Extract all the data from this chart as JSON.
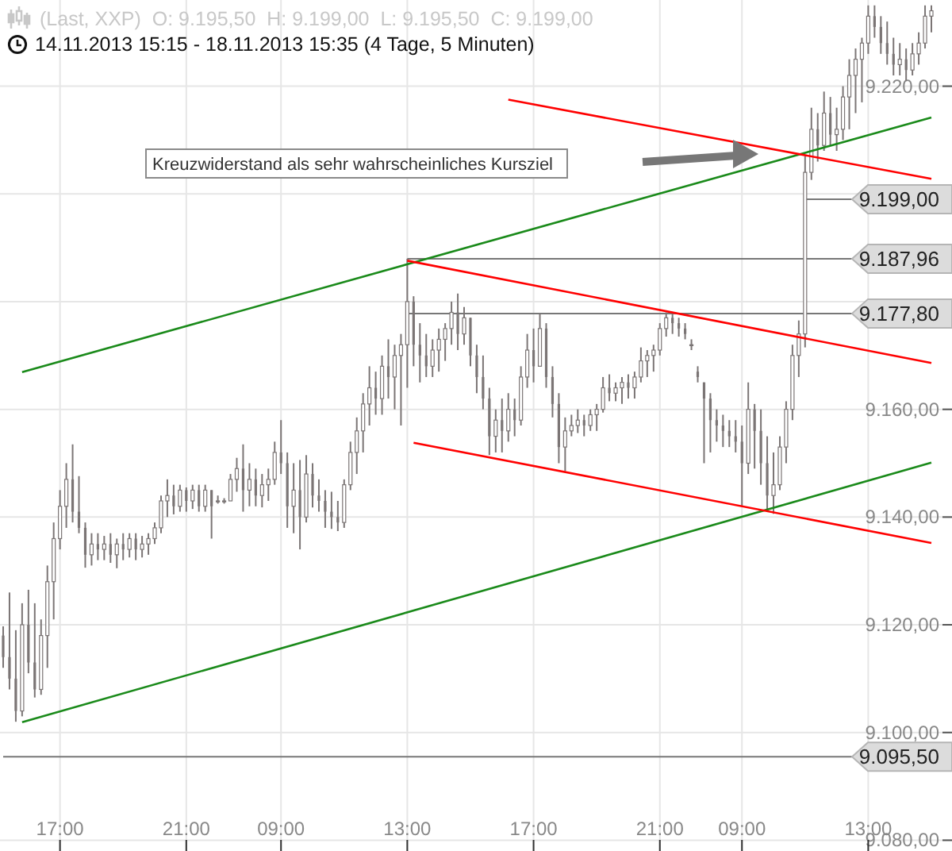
{
  "chart_data": {
    "type": "candlestick",
    "title": "(Last, XXP)  O: 9.195,50  H: 9.199,00  L: 9.195,50  C: 9.199,00",
    "subtitle": "14.11.2013 15:15 - 18.11.2013 15:35 (4 Tage, 5 Minuten)",
    "categories": [
      null,
      null,
      null,
      null,
      null,
      null,
      null,
      null,
      null,
      "17:00",
      null,
      null,
      null,
      null,
      null,
      null,
      null,
      null,
      null,
      null,
      null,
      null,
      null,
      null,
      null,
      null,
      null,
      null,
      null,
      "21:00",
      null,
      null,
      null,
      null,
      null,
      null,
      null,
      null,
      null,
      null,
      null,
      null,
      null,
      null,
      "09:00",
      null,
      null,
      null,
      null,
      null,
      null,
      null,
      null,
      null,
      null,
      null,
      null,
      null,
      null,
      null,
      null,
      null,
      null,
      null,
      "13:00",
      null,
      null,
      null,
      null,
      null,
      null,
      null,
      null,
      null,
      null,
      null,
      null,
      null,
      null,
      null,
      null,
      null,
      null,
      null,
      "17:00",
      null,
      null,
      null,
      null,
      null,
      null,
      null,
      null,
      null,
      null,
      null,
      null,
      null,
      null,
      null,
      null,
      null,
      null,
      null,
      "21:00",
      null,
      null,
      null,
      null,
      null,
      null,
      null,
      null,
      null,
      null,
      null,
      null,
      "09:00",
      null,
      null,
      null,
      null,
      null,
      null,
      null,
      null,
      null,
      null,
      null,
      null,
      null,
      null,
      null,
      null,
      null,
      null,
      null,
      "13:00",
      null,
      null,
      null,
      null,
      null,
      null,
      null,
      null,
      null,
      null
    ],
    "ylim": [
      9078,
      9236
    ],
    "yticks": [
      {
        "value": 9080,
        "label": "9.080,00"
      },
      {
        "value": 9100,
        "label": "9.100,00"
      },
      {
        "value": 9120,
        "label": "9.120,00"
      },
      {
        "value": 9140,
        "label": "9.140,00"
      },
      {
        "value": 9160,
        "label": "9.160,00"
      },
      {
        "value": 9180,
        "label": null
      },
      {
        "value": 9200,
        "label": null
      },
      {
        "value": 9220,
        "label": "9.220,00"
      }
    ],
    "grid": true,
    "series": [
      {
        "color": "#7b7575",
        "ohlc": [
          [
            9118,
            9119.7,
            9112,
            9114
          ],
          [
            9114,
            9126,
            9108,
            9110
          ],
          [
            9110,
            9119,
            9102,
            9104
          ],
          [
            9104,
            9124,
            9103,
            9120
          ],
          [
            9120,
            9126.5,
            9111,
            9113
          ],
          [
            9113,
            9124,
            9106.5,
            9108
          ],
          [
            9108,
            9121,
            9107,
            9118
          ],
          [
            9118,
            9131,
            9112,
            9128
          ],
          [
            9128,
            9139,
            9121,
            9136
          ],
          [
            9136,
            9145,
            9134,
            9142
          ],
          [
            9142,
            9150,
            9138,
            9147
          ],
          [
            9147,
            9153.5,
            9139,
            9141
          ],
          [
            9141,
            9147.6,
            9137,
            9138
          ],
          [
            9138,
            9139,
            9130.6,
            9133
          ],
          [
            9133,
            9137,
            9131,
            9135
          ],
          [
            9135,
            9137,
            9132,
            9134
          ],
          [
            9134,
            9136.5,
            9132,
            9135
          ],
          [
            9135,
            9137,
            9131.5,
            9133
          ],
          [
            9133,
            9136,
            9130.5,
            9135
          ],
          [
            9135,
            9137,
            9132,
            9134
          ],
          [
            9134,
            9137,
            9132.5,
            9136
          ],
          [
            9136,
            9137,
            9132,
            9134
          ],
          [
            9134,
            9136.5,
            9132.5,
            9135
          ],
          [
            9135,
            9137,
            9133,
            9136
          ],
          [
            9136,
            9139,
            9135,
            9138
          ],
          [
            9138,
            9144,
            9137,
            9143
          ],
          [
            9143,
            9147,
            9140,
            9144
          ],
          [
            9144,
            9146,
            9140.5,
            9142
          ],
          [
            9142,
            9146,
            9141,
            9145
          ],
          [
            9145,
            9145.5,
            9141,
            9143
          ],
          [
            9143,
            9146,
            9141.5,
            9145
          ],
          [
            9145,
            9146,
            9141,
            9142
          ],
          [
            9142,
            9146,
            9141,
            9145
          ],
          [
            9145,
            9145,
            9136,
            9142
          ],
          [
            9143,
            9144,
            9142.5,
            9143
          ],
          [
            9143,
            9143.5,
            9142.5,
            9143
          ],
          [
            9143,
            9148,
            9143,
            9147
          ],
          [
            9147,
            9151,
            9144.7,
            9149
          ],
          [
            9149,
            9153.5,
            9141,
            9145
          ],
          [
            9145,
            9150,
            9142,
            9147
          ],
          [
            9147,
            9149,
            9142,
            9144
          ],
          [
            9144,
            9148,
            9141.8,
            9146
          ],
          [
            9146,
            9149,
            9143,
            9147
          ],
          [
            9147,
            9154,
            9146,
            9152
          ],
          [
            9152,
            9158,
            9148,
            9150
          ],
          [
            9150,
            9152,
            9138,
            9142
          ],
          [
            9142,
            9150,
            9137,
            9145
          ],
          [
            9145,
            9150.6,
            9134,
            9140
          ],
          [
            9140,
            9151.5,
            9139,
            9148
          ],
          [
            9148,
            9150,
            9141.8,
            9144
          ],
          [
            9144,
            9147,
            9141,
            9143
          ],
          [
            9143,
            9145,
            9138,
            9141
          ],
          [
            9141,
            9144.7,
            9137.8,
            9140
          ],
          [
            9140,
            9143,
            9137.4,
            9139
          ],
          [
            9139,
            9147,
            9138,
            9146
          ],
          [
            9146,
            9154,
            9145,
            9152
          ],
          [
            9152,
            9158.5,
            9148,
            9156
          ],
          [
            9156,
            9163,
            9152,
            9161
          ],
          [
            9161,
            9168,
            9157,
            9164
          ],
          [
            9164,
            9167,
            9159,
            9162
          ],
          [
            9162,
            9170,
            9159,
            9168
          ],
          [
            9168,
            9173,
            9162,
            9166
          ],
          [
            9166,
            9172,
            9160,
            9170
          ],
          [
            9170,
            9174,
            9157,
            9172
          ],
          [
            9172,
            9187.96,
            9164,
            9180
          ],
          [
            9180,
            9181,
            9168,
            9172
          ],
          [
            9172,
            9176,
            9165,
            9170
          ],
          [
            9170,
            9174,
            9166,
            9168
          ],
          [
            9168,
            9173,
            9166,
            9171
          ],
          [
            9171,
            9175,
            9167,
            9173
          ],
          [
            9173,
            9176,
            9169,
            9175
          ],
          [
            9175,
            9180,
            9172,
            9178
          ],
          [
            9178,
            9181.5,
            9171,
            9174
          ],
          [
            9174,
            9179,
            9172,
            9177
          ],
          [
            9177,
            9177,
            9168,
            9170
          ],
          [
            9170,
            9172,
            9163,
            9166
          ],
          [
            9166,
            9170,
            9160,
            9162
          ],
          [
            9162,
            9164,
            9151.5,
            9155
          ],
          [
            9155,
            9160,
            9152,
            9158
          ],
          [
            9158,
            9162,
            9152,
            9156
          ],
          [
            9156,
            9163,
            9154,
            9160
          ],
          [
            9160,
            9162,
            9155,
            9158
          ],
          [
            9158,
            9168,
            9157,
            9166
          ],
          [
            9166,
            9174,
            9164,
            9171
          ],
          [
            9171,
            9175,
            9165,
            9168
          ],
          [
            9168,
            9177.8,
            9168,
            9175
          ],
          [
            9175,
            9176,
            9164,
            9166
          ],
          [
            9166,
            9168,
            9158.5,
            9161
          ],
          [
            9161,
            9163,
            9150,
            9153
          ],
          [
            9153,
            9158.5,
            9148.5,
            9156
          ],
          [
            9156,
            9159,
            9155,
            9157
          ],
          [
            9157,
            9160,
            9155.6,
            9158
          ],
          [
            9158,
            9159,
            9155,
            9157
          ],
          [
            9157,
            9160,
            9156,
            9159
          ],
          [
            9159,
            9161,
            9156,
            9160
          ],
          [
            9160,
            9166,
            9159.4,
            9164
          ],
          [
            9164,
            9166.5,
            9161.5,
            9163
          ],
          [
            9163,
            9165,
            9161.5,
            9164
          ],
          [
            9164,
            9166,
            9161,
            9165
          ],
          [
            9165,
            9166.5,
            9162,
            9164
          ],
          [
            9164,
            9167,
            9162,
            9166
          ],
          [
            9166,
            9171.5,
            9165,
            9169
          ],
          [
            9169,
            9171,
            9166,
            9170
          ],
          [
            9170,
            9172,
            9167,
            9171
          ],
          [
            9171,
            9176,
            9170,
            9175
          ],
          [
            9175,
            9178,
            9173.5,
            9177
          ],
          [
            9177,
            9178,
            9174,
            9176
          ],
          [
            9176,
            9177,
            9173.5,
            9175
          ],
          [
            9175,
            9176,
            9173,
            9174
          ],
          [
            9172,
            9173,
            9171,
            9172
          ],
          [
            9167,
            9168,
            9165,
            9166
          ],
          [
            9165,
            9165,
            9150,
            9162
          ],
          [
            9162,
            9163,
            9152,
            9158
          ],
          [
            9158,
            9160,
            9154,
            9157
          ],
          [
            9157,
            9159,
            9153,
            9156
          ],
          [
            9156,
            9158,
            9153,
            9155
          ],
          [
            9155,
            9158,
            9152,
            9154
          ],
          [
            9154,
            9157,
            9142,
            9150
          ],
          [
            9150,
            9165,
            9148,
            9160
          ],
          [
            9160,
            9161,
            9149,
            9156
          ],
          [
            9156,
            9160,
            9146,
            9150
          ],
          [
            9150,
            9155,
            9141,
            9144
          ],
          [
            9144,
            9152,
            9140.6,
            9146
          ],
          [
            9146,
            9155,
            9145,
            9153
          ],
          [
            9153,
            9161.5,
            9150,
            9160
          ],
          [
            9160,
            9172,
            9158,
            9170
          ],
          [
            9170,
            9176.5,
            9166,
            9174
          ],
          [
            9174,
            9207,
            9171.5,
            9204
          ],
          [
            9204,
            9216,
            9202.6,
            9212
          ],
          [
            9212,
            9215,
            9206,
            9209
          ],
          [
            9209,
            9219,
            9208,
            9215
          ],
          [
            9215,
            9218,
            9209,
            9211
          ],
          [
            9211,
            9216,
            9208,
            9212
          ],
          [
            9212,
            9220,
            9210,
            9218
          ],
          [
            9218,
            9225,
            9212,
            9222
          ],
          [
            9222,
            9227,
            9215,
            9225
          ],
          [
            9225,
            9229,
            9217,
            9228
          ],
          [
            9228,
            9235,
            9226,
            9233
          ],
          [
            9233,
            9235,
            9229,
            9231
          ],
          [
            9231,
            9233,
            9226,
            9228
          ],
          [
            9228,
            9232,
            9224,
            9226
          ],
          [
            9226,
            9229,
            9222,
            9224
          ],
          [
            9224,
            9228,
            9222,
            9225
          ],
          [
            9225,
            9227,
            9221,
            9223
          ],
          [
            9223,
            9228,
            9222,
            9226
          ],
          [
            9226,
            9230,
            9224,
            9228
          ],
          [
            9228,
            9235,
            9227,
            9233
          ],
          [
            9233,
            9235,
            9230,
            9234
          ]
        ]
      },
      {
        "type": "line",
        "color": "#1a8a1a",
        "values": [
          null,
          null,
          null,
          9166.9,
          null,
          null,
          null,
          null,
          null,
          null,
          null,
          null,
          null,
          null,
          null,
          null,
          null,
          null,
          null,
          null,
          null,
          null,
          null,
          null,
          null,
          null,
          null,
          null,
          null,
          null,
          null,
          null,
          null,
          null,
          null,
          null,
          null,
          null,
          null,
          null,
          null,
          null,
          null,
          null,
          null,
          null,
          null,
          null,
          null,
          null,
          null,
          null,
          null,
          null,
          null,
          null,
          null,
          null,
          null,
          null,
          null,
          null,
          null,
          null,
          null,
          null,
          null,
          null,
          null,
          null,
          null,
          null,
          null,
          null,
          null,
          null,
          null,
          null,
          null,
          null,
          null,
          null,
          null,
          null,
          null,
          null,
          null,
          null,
          null,
          null,
          null,
          null,
          null,
          null,
          null,
          null,
          null,
          null,
          null,
          null,
          null,
          null,
          null,
          null,
          null,
          null,
          null,
          null,
          null,
          null,
          null,
          null,
          null,
          null,
          null,
          null,
          null,
          null,
          null,
          null,
          null,
          null,
          null,
          null,
          null,
          null,
          null,
          null,
          null,
          null,
          null,
          null,
          null,
          null,
          null,
          null,
          null,
          null,
          null,
          null,
          null,
          null,
          null,
          null,
          null,
          null,
          null,
          9214.2
        ]
      },
      {
        "type": "line",
        "color": "#1a8a1a",
        "values": [
          null,
          null,
          null,
          9101.9,
          null,
          null,
          null,
          null,
          null,
          null,
          null,
          null,
          null,
          null,
          null,
          null,
          null,
          null,
          null,
          null,
          null,
          null,
          null,
          null,
          null,
          null,
          null,
          null,
          null,
          null,
          null,
          null,
          null,
          null,
          null,
          null,
          null,
          null,
          null,
          null,
          null,
          null,
          null,
          null,
          null,
          null,
          null,
          null,
          null,
          null,
          null,
          null,
          null,
          null,
          null,
          null,
          null,
          null,
          null,
          null,
          null,
          null,
          null,
          null,
          null,
          null,
          null,
          null,
          null,
          null,
          null,
          null,
          null,
          null,
          null,
          null,
          null,
          null,
          null,
          null,
          null,
          null,
          null,
          null,
          null,
          null,
          null,
          null,
          null,
          null,
          null,
          null,
          null,
          null,
          null,
          null,
          null,
          null,
          null,
          null,
          null,
          null,
          null,
          null,
          null,
          null,
          null,
          null,
          null,
          null,
          null,
          null,
          null,
          null,
          null,
          null,
          null,
          null,
          null,
          null,
          null,
          null,
          null,
          null,
          null,
          null,
          null,
          null,
          null,
          null,
          null,
          null,
          null,
          null,
          null,
          null,
          null,
          null,
          null,
          null,
          null,
          null,
          null,
          null,
          null,
          null,
          null,
          9150.1
        ]
      },
      {
        "type": "line",
        "color": "#ff0000",
        "values": [
          null,
          null,
          null,
          null,
          null,
          null,
          null,
          null,
          null,
          null,
          null,
          null,
          null,
          null,
          null,
          null,
          null,
          null,
          null,
          null,
          null,
          null,
          null,
          null,
          null,
          null,
          null,
          null,
          null,
          null,
          null,
          null,
          null,
          null,
          null,
          null,
          null,
          null,
          null,
          null,
          null,
          null,
          null,
          null,
          null,
          null,
          null,
          null,
          null,
          null,
          null,
          null,
          null,
          null,
          null,
          null,
          null,
          null,
          null,
          null,
          null,
          null,
          null,
          null,
          9187.6,
          null,
          null,
          null,
          null,
          null,
          null,
          null,
          null,
          null,
          null,
          null,
          null,
          null,
          null,
          null,
          null,
          null,
          null,
          null,
          null,
          null,
          null,
          null,
          null,
          null,
          null,
          null,
          null,
          null,
          null,
          null,
          null,
          null,
          null,
          null,
          null,
          null,
          null,
          null,
          null,
          null,
          null,
          null,
          null,
          null,
          null,
          null,
          null,
          null,
          null,
          null,
          null,
          null,
          null,
          null,
          null,
          null,
          null,
          null,
          null,
          null,
          null,
          null,
          null,
          null,
          null,
          null,
          null,
          null,
          null,
          null,
          null,
          null,
          null,
          null,
          null,
          null,
          null,
          null,
          null,
          null,
          null,
          9168.6
        ]
      },
      {
        "type": "line",
        "color": "#ff0000",
        "values": [
          null,
          null,
          null,
          null,
          null,
          null,
          null,
          null,
          null,
          null,
          null,
          null,
          null,
          null,
          null,
          null,
          null,
          null,
          null,
          null,
          null,
          null,
          null,
          null,
          null,
          null,
          null,
          null,
          null,
          null,
          null,
          null,
          null,
          null,
          null,
          null,
          null,
          null,
          null,
          null,
          null,
          null,
          null,
          null,
          null,
          null,
          null,
          null,
          null,
          null,
          null,
          null,
          null,
          null,
          null,
          null,
          null,
          null,
          null,
          null,
          null,
          null,
          null,
          null,
          null,
          9153.8,
          null,
          null,
          null,
          null,
          null,
          null,
          null,
          null,
          null,
          null,
          null,
          null,
          null,
          null,
          null,
          null,
          null,
          null,
          null,
          null,
          null,
          null,
          null,
          null,
          null,
          null,
          null,
          null,
          null,
          null,
          null,
          null,
          null,
          null,
          null,
          null,
          null,
          null,
          null,
          null,
          null,
          null,
          null,
          null,
          null,
          null,
          null,
          null,
          null,
          null,
          null,
          null,
          null,
          null,
          null,
          null,
          null,
          null,
          null,
          null,
          null,
          null,
          null,
          null,
          null,
          null,
          null,
          null,
          null,
          null,
          null,
          null,
          null,
          null,
          null,
          null,
          null,
          null,
          null,
          null,
          null,
          9135.2
        ]
      },
      {
        "type": "line",
        "color": "#ff0000",
        "values": [
          null,
          null,
          null,
          null,
          null,
          null,
          null,
          null,
          null,
          null,
          null,
          null,
          null,
          null,
          null,
          null,
          null,
          null,
          null,
          null,
          null,
          null,
          null,
          null,
          null,
          null,
          null,
          null,
          null,
          null,
          null,
          null,
          null,
          null,
          null,
          null,
          null,
          null,
          null,
          null,
          null,
          null,
          null,
          null,
          null,
          null,
          null,
          null,
          null,
          null,
          null,
          null,
          null,
          null,
          null,
          null,
          null,
          null,
          null,
          null,
          null,
          null,
          null,
          null,
          null,
          null,
          null,
          null,
          null,
          null,
          null,
          null,
          null,
          null,
          null,
          null,
          null,
          null,
          null,
          null,
          9217.5,
          null,
          null,
          null,
          null,
          null,
          null,
          null,
          null,
          null,
          null,
          null,
          null,
          null,
          null,
          null,
          null,
          null,
          null,
          null,
          null,
          null,
          null,
          null,
          null,
          null,
          null,
          null,
          null,
          null,
          null,
          null,
          null,
          null,
          null,
          null,
          null,
          null,
          null,
          null,
          null,
          null,
          null,
          null,
          null,
          null,
          null,
          null,
          null,
          null,
          null,
          null,
          null,
          null,
          null,
          null,
          null,
          null,
          null,
          null,
          null,
          null,
          null,
          null,
          null,
          null,
          null,
          9202.8
        ]
      }
    ],
    "ref_lines": [
      {
        "axis": "y",
        "value": 9187.96,
        "label": "9.187,96",
        "color": "#777777"
      },
      {
        "axis": "y",
        "value": 9177.8,
        "label": "9.177,80",
        "color": "#777777"
      },
      {
        "axis": "y",
        "value": 9095.5,
        "label": "9.095,50",
        "color": "#777777"
      },
      {
        "axis": "y",
        "value": 9199,
        "label": "9.199,00",
        "color": "#777777"
      }
    ],
    "annotations": [
      "Kreuzwiderstand als sehr wahrscheinliches Kursziel"
    ]
  }
}
